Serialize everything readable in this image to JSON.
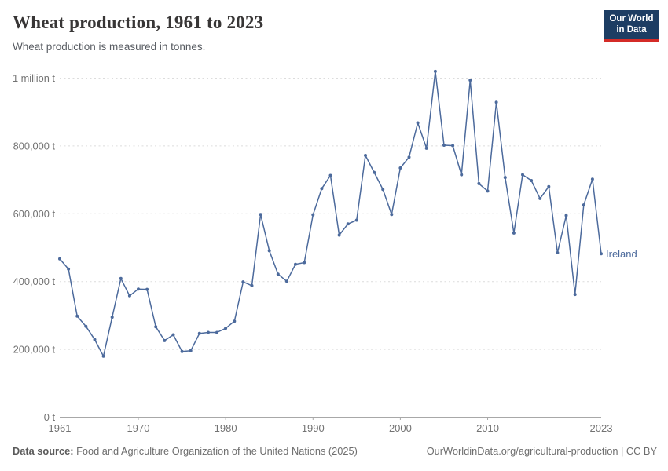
{
  "header": {
    "title": "Wheat production, 1961 to 2023",
    "subtitle": "Wheat production is measured in tonnes.",
    "logo": {
      "line1": "Our World",
      "line2": "in Data"
    }
  },
  "chart_data": {
    "type": "line",
    "title": "Wheat production, 1961 to 2023",
    "subtitle": "Wheat production is measured in tonnes.",
    "unit": "tonnes",
    "grid": "horizontal-dashed",
    "legend_position": "end-of-line-label",
    "xlabel": "",
    "ylabel": "",
    "ylim": [
      0,
      1050000
    ],
    "xlim": [
      1961,
      2023
    ],
    "x": [
      1961,
      1962,
      1963,
      1964,
      1965,
      1966,
      1967,
      1968,
      1969,
      1970,
      1971,
      1972,
      1973,
      1974,
      1975,
      1976,
      1977,
      1978,
      1979,
      1980,
      1981,
      1982,
      1983,
      1984,
      1985,
      1986,
      1987,
      1988,
      1989,
      1990,
      1991,
      1992,
      1993,
      1994,
      1995,
      1996,
      1997,
      1998,
      1999,
      2000,
      2001,
      2002,
      2003,
      2004,
      2005,
      2006,
      2007,
      2008,
      2009,
      2010,
      2011,
      2012,
      2013,
      2014,
      2015,
      2016,
      2017,
      2018,
      2019,
      2020,
      2021,
      2022,
      2023
    ],
    "series": [
      {
        "name": "Ireland",
        "color": "#4c6a9c",
        "values": [
          467000,
          437000,
          298000,
          268000,
          229000,
          180000,
          295000,
          409000,
          358000,
          378000,
          377000,
          267000,
          226000,
          243000,
          194000,
          196000,
          247000,
          250000,
          250000,
          262000,
          283000,
          399000,
          388000,
          598000,
          491000,
          422000,
          401000,
          451000,
          456000,
          597000,
          674000,
          713000,
          537000,
          570000,
          581000,
          772000,
          722000,
          672000,
          598000,
          735000,
          767000,
          868000,
          793000,
          1020000,
          802000,
          801000,
          715000,
          994000,
          689000,
          667000,
          929000,
          707000,
          543000,
          715000,
          698000,
          645000,
          680000,
          485000,
          595000,
          362000,
          626000,
          702000,
          482000
        ]
      }
    ],
    "yticks": [
      {
        "value": 0,
        "label": "0 t"
      },
      {
        "value": 200000,
        "label": "200,000 t"
      },
      {
        "value": 400000,
        "label": "400,000 t"
      },
      {
        "value": 600000,
        "label": "600,000 t"
      },
      {
        "value": 800000,
        "label": "800,000 t"
      },
      {
        "value": 1000000,
        "label": "1 million t"
      }
    ],
    "xticks": [
      {
        "value": 1961,
        "label": "1961"
      },
      {
        "value": 1970,
        "label": "1970"
      },
      {
        "value": 1980,
        "label": "1980"
      },
      {
        "value": 1990,
        "label": "1990"
      },
      {
        "value": 2000,
        "label": "2000"
      },
      {
        "value": 2010,
        "label": "2010"
      },
      {
        "value": 2023,
        "label": "2023"
      }
    ]
  },
  "footer": {
    "source_label": "Data source:",
    "source_text": " Food and Agriculture Organization of the United Nations (2025)",
    "credit": "OurWorldinData.org/agricultural-production | CC BY"
  },
  "colors": {
    "line": "#4c6a9c",
    "grid": "#dcdcdc",
    "axis": "#a8a8a8",
    "tick_text": "#737373",
    "logo_bg": "#1d3d63",
    "logo_accent": "#d42b27"
  }
}
